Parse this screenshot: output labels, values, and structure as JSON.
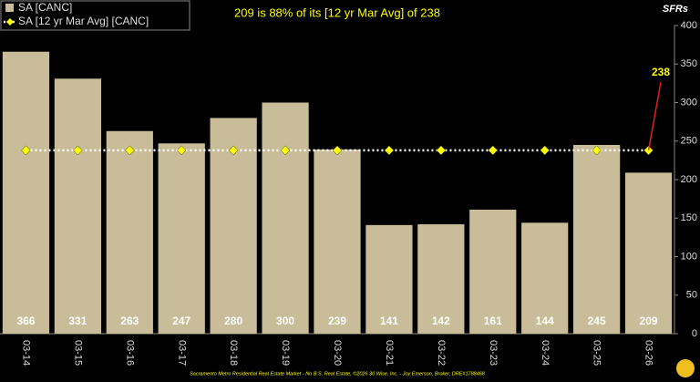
{
  "chart_data": {
    "type": "bar",
    "title": "209 is 88% of its [12 yr Mar Avg] of 238",
    "y_label": "SFRs",
    "categories": [
      "03-14",
      "03-15",
      "03-16",
      "03-17",
      "03-18",
      "03-19",
      "03-20",
      "03-21",
      "03-22",
      "03-23",
      "03-24",
      "03-25",
      "03-26"
    ],
    "series": [
      {
        "name": "SA [CANC]",
        "color": "#c8bd98",
        "values": [
          366,
          331,
          263,
          247,
          280,
          300,
          239,
          141,
          142,
          161,
          144,
          245,
          209
        ]
      },
      {
        "name": "SA [12 yr Mar Avg] [CANC]",
        "color": "#ffff00",
        "values": [
          238,
          238,
          238,
          238,
          238,
          238,
          238,
          238,
          238,
          238,
          238,
          238,
          238
        ]
      }
    ],
    "ylim": [
      0,
      400
    ],
    "yticks": [
      0,
      50,
      100,
      150,
      200,
      250,
      300,
      350,
      400
    ],
    "annotation": "238",
    "footer": "Sacramento Metro Residential Real Estate Market - No B.S. Real Estate, ©2026 30 Wise, Inc. - Joy Emerson, Broker, DRE#1788468"
  }
}
